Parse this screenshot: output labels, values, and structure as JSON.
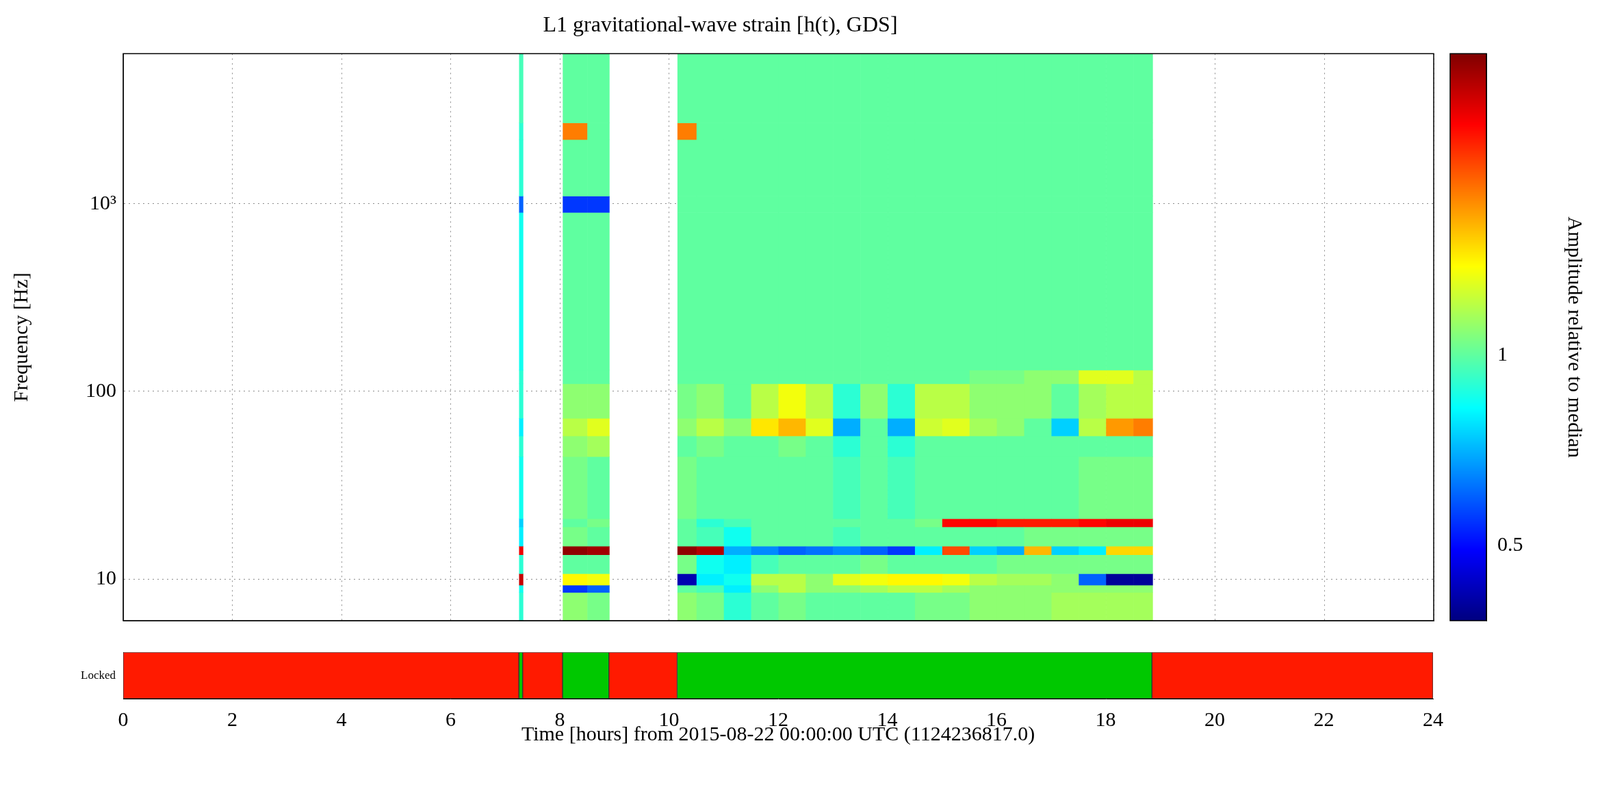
{
  "chart_data": {
    "type": "heatmap",
    "title": "L1 gravitational-wave strain [h(t), GDS]",
    "x_label": "Time [hours] from 2015-08-22 00:00:00 UTC (1124236817.0)",
    "y_label": "Frequency [Hz]",
    "xlim": [
      0,
      24
    ],
    "xticks": [
      0,
      2,
      4,
      6,
      8,
      10,
      12,
      14,
      16,
      18,
      20,
      22,
      24
    ],
    "ylim": [
      6,
      6300
    ],
    "yticks": [
      10,
      100,
      {
        "value": 1000,
        "label": "10³"
      }
    ],
    "log": "y",
    "grid": true,
    "heatmap": {
      "y_edges": [
        6,
        8.5,
        9.3,
        10.7,
        13.5,
        15,
        19,
        21,
        45,
        58,
        72,
        110,
        130,
        900,
        1100,
        2200,
        2700,
        6300
      ],
      "columns": [
        {
          "start": 7.25,
          "end": 7.32,
          "values": [
            0.9,
            0.85,
            2.6,
            0.9,
            2.4,
            0.8,
            0.75,
            0.85,
            0.9,
            0.8,
            0.9,
            0.9,
            0.85,
            0.6,
            0.9,
            0.9,
            0.95
          ]
        },
        {
          "start": 8.05,
          "end": 8.5,
          "values": [
            1.1,
            0.55,
            1.4,
            1.0,
            2.9,
            1.05,
            1.0,
            1.05,
            1.1,
            1.2,
            1.1,
            1.0,
            1.0,
            0.55,
            1.0,
            1.8,
            1.0
          ]
        },
        {
          "start": 8.5,
          "end": 8.9,
          "values": [
            1.05,
            0.6,
            1.35,
            1.0,
            2.8,
            1.0,
            1.05,
            1.0,
            1.15,
            1.3,
            1.1,
            1.0,
            1.0,
            0.55,
            1.0,
            1.0,
            1.0
          ]
        },
        {
          "start": 10.15,
          "end": 10.5,
          "values": [
            1.1,
            1.0,
            0.42,
            1.05,
            2.9,
            1.0,
            1.0,
            1.05,
            1.0,
            1.1,
            1.05,
            1.0,
            1.0,
            1.0,
            1.0,
            1.8,
            1.0
          ]
        },
        {
          "start": 10.5,
          "end": 11,
          "values": [
            1.05,
            0.95,
            0.8,
            0.85,
            2.7,
            0.95,
            0.9,
            1.0,
            1.05,
            1.2,
            1.1,
            1.0,
            1.0,
            1.0,
            1.0,
            1.0,
            1.0
          ]
        },
        {
          "start": 11,
          "end": 11.5,
          "values": [
            0.9,
            0.8,
            0.85,
            0.8,
            0.7,
            0.85,
            0.95,
            1.0,
            1.0,
            1.1,
            1.0,
            1.0,
            1.0,
            1.0,
            1.0,
            1.0,
            1.0
          ]
        },
        {
          "start": 11.5,
          "end": 12,
          "values": [
            1.0,
            1.1,
            1.2,
            0.95,
            0.65,
            1.0,
            1.0,
            1.0,
            1.0,
            1.45,
            1.2,
            1.0,
            1.0,
            1.0,
            1.0,
            1.0,
            1.0
          ]
        },
        {
          "start": 12,
          "end": 12.5,
          "values": [
            1.05,
            1.2,
            1.2,
            1.0,
            0.6,
            1.0,
            1.0,
            1.0,
            1.05,
            1.6,
            1.35,
            1.0,
            1.0,
            1.0,
            1.0,
            1.0,
            1.0
          ]
        },
        {
          "start": 12.5,
          "end": 13,
          "values": [
            1.0,
            1.1,
            1.1,
            1.0,
            0.62,
            1.0,
            1.0,
            1.0,
            1.0,
            1.3,
            1.2,
            1.0,
            1.0,
            1.0,
            1.0,
            1.0,
            1.0
          ]
        },
        {
          "start": 13,
          "end": 13.5,
          "values": [
            1.0,
            1.1,
            1.3,
            1.0,
            0.65,
            0.95,
            1.0,
            0.95,
            0.9,
            0.7,
            0.9,
            1.0,
            1.0,
            1.0,
            1.0,
            1.0,
            1.0
          ]
        },
        {
          "start": 13.5,
          "end": 14,
          "values": [
            1.0,
            1.15,
            1.35,
            1.05,
            0.6,
            1.0,
            1.0,
            1.0,
            1.0,
            1.0,
            1.1,
            1.0,
            1.0,
            1.0,
            1.0,
            1.0,
            1.0
          ]
        },
        {
          "start": 14,
          "end": 14.5,
          "values": [
            1.0,
            1.2,
            1.4,
            1.0,
            0.55,
            1.0,
            1.0,
            0.95,
            0.9,
            0.7,
            0.9,
            1.0,
            1.0,
            1.0,
            1.0,
            1.0,
            1.0
          ]
        },
        {
          "start": 14.5,
          "end": 15,
          "values": [
            1.05,
            1.2,
            1.4,
            1.0,
            0.8,
            1.0,
            1.05,
            1.0,
            1.0,
            1.25,
            1.2,
            1.0,
            1.0,
            1.0,
            1.0,
            1.0,
            1.0
          ]
        },
        {
          "start": 15,
          "end": 15.5,
          "values": [
            1.05,
            1.15,
            1.35,
            1.0,
            2.0,
            1.0,
            2.3,
            1.0,
            1.0,
            1.3,
            1.2,
            1.0,
            1.0,
            1.0,
            1.0,
            1.0,
            1.0
          ]
        },
        {
          "start": 15.5,
          "end": 16,
          "values": [
            1.1,
            1.1,
            1.2,
            1.0,
            0.75,
            1.0,
            2.3,
            1.0,
            1.0,
            1.15,
            1.1,
            1.05,
            1.0,
            1.0,
            1.0,
            1.0,
            1.0
          ]
        },
        {
          "start": 16,
          "end": 16.5,
          "values": [
            1.1,
            1.1,
            1.15,
            1.05,
            0.7,
            1.0,
            2.2,
            1.0,
            1.0,
            1.1,
            1.1,
            1.05,
            1.0,
            1.0,
            1.0,
            1.0,
            1.0
          ]
        },
        {
          "start": 16.5,
          "end": 17,
          "values": [
            1.1,
            1.1,
            1.15,
            1.05,
            1.6,
            1.05,
            2.2,
            1.0,
            1.0,
            1.0,
            1.1,
            1.1,
            1.0,
            1.0,
            1.0,
            1.0,
            1.0
          ]
        },
        {
          "start": 17,
          "end": 17.5,
          "values": [
            1.15,
            1.1,
            1.1,
            1.05,
            0.75,
            1.05,
            2.2,
            1.0,
            1.0,
            0.75,
            1.0,
            1.1,
            1.0,
            1.0,
            1.0,
            1.0,
            1.0
          ]
        },
        {
          "start": 17.5,
          "end": 18,
          "values": [
            1.15,
            1.1,
            0.6,
            1.05,
            0.8,
            1.05,
            2.3,
            1.05,
            1.0,
            1.2,
            1.15,
            1.3,
            1.0,
            1.0,
            1.0,
            1.0,
            1.0
          ]
        },
        {
          "start": 18,
          "end": 18.5,
          "values": [
            1.15,
            1.1,
            0.4,
            1.05,
            1.5,
            1.05,
            2.4,
            1.05,
            1.0,
            1.7,
            1.2,
            1.3,
            1.0,
            1.0,
            1.0,
            1.0,
            1.0
          ]
        },
        {
          "start": 18.5,
          "end": 18.85,
          "values": [
            1.15,
            1.1,
            0.4,
            1.05,
            1.5,
            1.05,
            2.4,
            1.05,
            1.0,
            1.8,
            1.2,
            1.2,
            1.0,
            1.0,
            1.0,
            1.0,
            1.0
          ]
        }
      ]
    },
    "colorbar": {
      "label": "Amplitude relative to median",
      "range": [
        0.38,
        3
      ],
      "ticks": [
        0.5,
        1
      ],
      "log": true
    },
    "locked": {
      "label": "Locked",
      "segments": [
        {
          "start": 0,
          "end": 7.25,
          "color": "#ff1a00"
        },
        {
          "start": 7.25,
          "end": 7.32,
          "color": "#00c800"
        },
        {
          "start": 7.32,
          "end": 8.05,
          "color": "#ff1a00"
        },
        {
          "start": 8.05,
          "end": 8.9,
          "color": "#00c800"
        },
        {
          "start": 8.9,
          "end": 10.15,
          "color": "#ff1a00"
        },
        {
          "start": 10.15,
          "end": 18.85,
          "color": "#00c800"
        },
        {
          "start": 18.85,
          "end": 24,
          "color": "#ff1a00"
        }
      ]
    }
  }
}
